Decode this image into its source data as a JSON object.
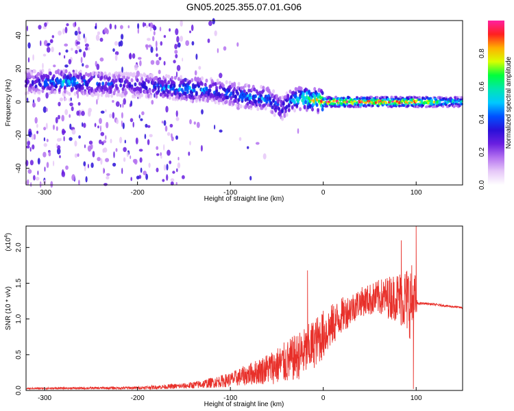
{
  "title": "GN05.2025.355.07.01.G06",
  "colors": {
    "snr_line": "#e8302a",
    "axis": "#000000",
    "colormap": [
      "#ffffff",
      "#e6c8f8",
      "#b472f0",
      "#6a1fe0",
      "#2a10d8",
      "#0050ff",
      "#00c8ff",
      "#00e6b0",
      "#00ff3c",
      "#d8ff00",
      "#ffb000",
      "#ff2020",
      "#ff20a0"
    ]
  },
  "chart_data": [
    {
      "type": "heatmap",
      "xlabel": "Height of straight line (km)",
      "ylabel": "Frequency (Hz)",
      "xlim": [
        -320,
        150
      ],
      "ylim": [
        -50,
        49
      ],
      "x_ticks": [
        -300,
        -200,
        -100,
        0,
        100
      ],
      "y_ticks": [
        -40,
        -20,
        0,
        20,
        40
      ],
      "colorbar": {
        "label": "Normalized spectral amplitude",
        "range": [
          0.0,
          1.0
        ],
        "ticks": [
          0.0,
          0.2,
          0.4,
          0.6,
          0.8
        ]
      },
      "ridge": {
        "x": [
          -320,
          -280,
          -250,
          -200,
          -150,
          -120,
          -100,
          -80,
          -60,
          -45,
          -35,
          -20,
          0,
          50,
          100,
          150
        ],
        "freq": [
          12,
          12,
          11,
          10,
          8,
          7,
          5,
          3,
          2,
          -4,
          1,
          2,
          0,
          0,
          0,
          0
        ],
        "peak": [
          0.35,
          0.55,
          0.45,
          0.35,
          0.55,
          0.45,
          0.45,
          0.5,
          0.5,
          0.4,
          0.5,
          0.7,
          0.95,
          1.0,
          0.95,
          0.6
        ]
      }
    },
    {
      "type": "line",
      "xlabel": "Height of straight line (km)",
      "ylabel": "SNR (10 * v/v)",
      "scale_label": "(x10",
      "scale_exp": "4",
      "scale_close": ")",
      "xlim": [
        -320,
        150
      ],
      "ylim": [
        0.0,
        2.3
      ],
      "x_ticks": [
        -300,
        -200,
        -100,
        0,
        100
      ],
      "y_ticks": [
        0.0,
        0.5,
        1.0,
        1.5,
        2.0
      ],
      "envelope": {
        "x": [
          -320,
          -200,
          -150,
          -130,
          -100,
          -70,
          -40,
          -20,
          0,
          20,
          40,
          60,
          80,
          95,
          100,
          101,
          110,
          150
        ],
        "mean": [
          0.03,
          0.04,
          0.07,
          0.1,
          0.17,
          0.3,
          0.45,
          0.6,
          0.85,
          1.1,
          1.28,
          1.35,
          1.38,
          1.35,
          1.3,
          1.22,
          1.22,
          1.16
        ],
        "noise": [
          0.01,
          0.02,
          0.04,
          0.06,
          0.1,
          0.18,
          0.3,
          0.35,
          0.35,
          0.25,
          0.2,
          0.25,
          0.35,
          0.55,
          0.4,
          0.02,
          0.015,
          0.015
        ]
      },
      "spikes": [
        {
          "x": -17,
          "y": 1.68
        },
        {
          "x": 84,
          "y": 2.1
        },
        {
          "x": 100,
          "y": 2.3
        },
        {
          "x": 97,
          "y": 0.02
        }
      ]
    }
  ]
}
